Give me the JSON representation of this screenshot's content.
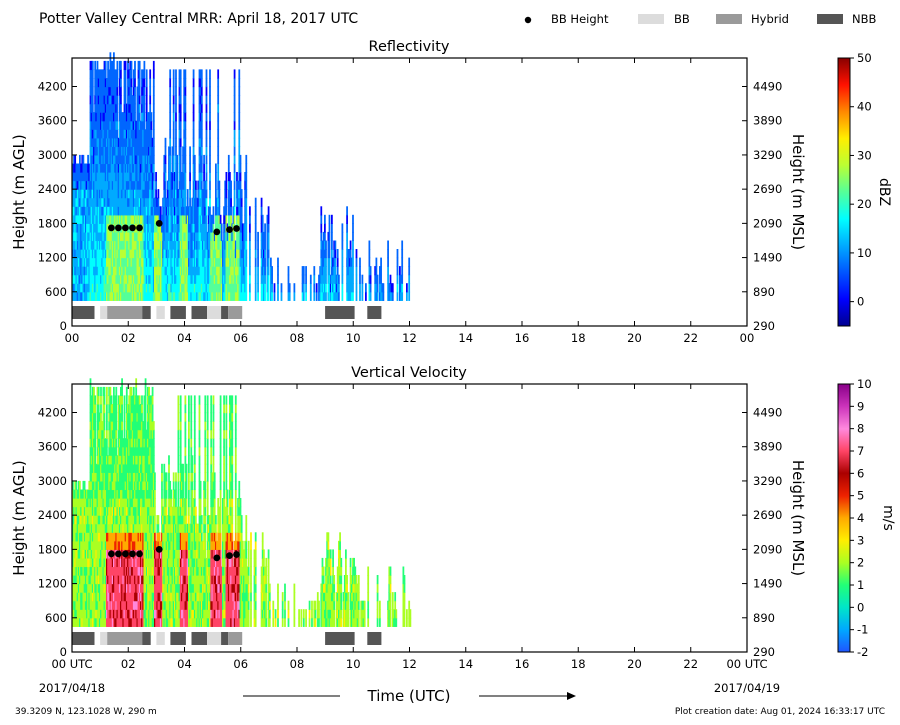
{
  "header": {
    "title": "Potter Valley Central MRR:  April 18, 2017 UTC",
    "legend": [
      {
        "label": "BB Height",
        "kind": "dot",
        "color": "#000000"
      },
      {
        "label": "BB",
        "kind": "box",
        "color": "#dcdcdc"
      },
      {
        "label": "Hybrid",
        "kind": "box",
        "color": "#9a9a9a"
      },
      {
        "label": "NBB",
        "kind": "box",
        "color": "#555555"
      }
    ]
  },
  "footer": {
    "coords": "39.3209 N, 123.1028 W, 290 m",
    "created": "Plot creation date: Aug 01, 2024 16:33:17 UTC",
    "xlabel": "Time (UTC)",
    "date_start": "2017/04/18",
    "date_end": "2017/04/19"
  },
  "chart_data": [
    {
      "type": "heatmap",
      "title": "Reflectivity",
      "ylabel": "Height (m AGL)",
      "ylabel_right": "Height (m MSL)",
      "xlim": [
        0,
        24
      ],
      "ylim": [
        0,
        4700
      ],
      "xticks": [
        "00",
        "02",
        "04",
        "06",
        "08",
        "10",
        "12",
        "14",
        "16",
        "18",
        "20",
        "22",
        "00"
      ],
      "yticks": [
        0,
        600,
        1200,
        1800,
        2400,
        3000,
        3600,
        4200
      ],
      "yticks_right": [
        290,
        890,
        1490,
        2090,
        2690,
        3290,
        3890,
        4490
      ],
      "colorbar": {
        "label": "dBZ",
        "min": -5,
        "max": 50,
        "ticks": [
          0,
          10,
          20,
          30,
          40,
          50
        ],
        "scheme": "jet"
      },
      "bb_height_points": [
        {
          "t": 1.4,
          "h": 1720
        },
        {
          "t": 1.65,
          "h": 1720
        },
        {
          "t": 1.9,
          "h": 1720
        },
        {
          "t": 2.15,
          "h": 1720
        },
        {
          "t": 2.4,
          "h": 1720
        },
        {
          "t": 3.1,
          "h": 1800
        },
        {
          "t": 5.15,
          "h": 1650
        },
        {
          "t": 5.6,
          "h": 1690
        },
        {
          "t": 5.85,
          "h": 1710
        }
      ],
      "bb_type_segments": [
        {
          "start": 0.0,
          "end": 0.8,
          "type": "NBB"
        },
        {
          "start": 1.0,
          "end": 1.25,
          "type": "BB"
        },
        {
          "start": 1.25,
          "end": 2.5,
          "type": "Hybrid"
        },
        {
          "start": 2.5,
          "end": 2.8,
          "type": "NBB"
        },
        {
          "start": 3.0,
          "end": 3.3,
          "type": "BB"
        },
        {
          "start": 3.5,
          "end": 4.05,
          "type": "NBB"
        },
        {
          "start": 4.25,
          "end": 4.8,
          "type": "NBB"
        },
        {
          "start": 4.8,
          "end": 5.3,
          "type": "BB"
        },
        {
          "start": 5.3,
          "end": 5.55,
          "type": "NBB"
        },
        {
          "start": 5.55,
          "end": 6.05,
          "type": "Hybrid"
        },
        {
          "start": 9.0,
          "end": 10.05,
          "type": "NBB"
        },
        {
          "start": 10.5,
          "end": 11.0,
          "type": "NBB"
        }
      ]
    },
    {
      "type": "heatmap",
      "title": "Vertical Velocity",
      "ylabel": "Height (m AGL)",
      "ylabel_right": "Height (m MSL)",
      "xlabel": "Time (UTC)",
      "xlim": [
        0,
        24
      ],
      "ylim": [
        0,
        4700
      ],
      "xticks": [
        "00 UTC",
        "02",
        "04",
        "06",
        "08",
        "10",
        "12",
        "14",
        "16",
        "18",
        "20",
        "22",
        "00 UTC"
      ],
      "yticks": [
        0,
        600,
        1200,
        1800,
        2400,
        3000,
        3600,
        4200
      ],
      "yticks_right": [
        290,
        890,
        1490,
        2090,
        2690,
        3290,
        3890,
        4490
      ],
      "colorbar": {
        "label": "m/s",
        "min": -2,
        "max": 10,
        "ticks": [
          -2,
          -1,
          0,
          1,
          2,
          3,
          4,
          5,
          6,
          7,
          8,
          9,
          10
        ],
        "scheme": "velocity"
      },
      "bb_height_points": [
        {
          "t": 1.4,
          "h": 1720
        },
        {
          "t": 1.65,
          "h": 1720
        },
        {
          "t": 1.9,
          "h": 1720
        },
        {
          "t": 2.15,
          "h": 1720
        },
        {
          "t": 2.4,
          "h": 1720
        },
        {
          "t": 3.1,
          "h": 1800
        },
        {
          "t": 5.15,
          "h": 1650
        },
        {
          "t": 5.6,
          "h": 1690
        },
        {
          "t": 5.85,
          "h": 1710
        }
      ],
      "bb_type_segments": [
        {
          "start": 0.0,
          "end": 0.8,
          "type": "NBB"
        },
        {
          "start": 1.0,
          "end": 1.25,
          "type": "BB"
        },
        {
          "start": 1.25,
          "end": 2.5,
          "type": "Hybrid"
        },
        {
          "start": 2.5,
          "end": 2.8,
          "type": "NBB"
        },
        {
          "start": 3.0,
          "end": 3.3,
          "type": "BB"
        },
        {
          "start": 3.5,
          "end": 4.05,
          "type": "NBB"
        },
        {
          "start": 4.25,
          "end": 4.8,
          "type": "NBB"
        },
        {
          "start": 4.8,
          "end": 5.3,
          "type": "BB"
        },
        {
          "start": 5.3,
          "end": 5.55,
          "type": "NBB"
        },
        {
          "start": 5.55,
          "end": 6.05,
          "type": "Hybrid"
        },
        {
          "start": 9.0,
          "end": 10.05,
          "type": "NBB"
        },
        {
          "start": 10.5,
          "end": 11.0,
          "type": "NBB"
        }
      ]
    }
  ]
}
